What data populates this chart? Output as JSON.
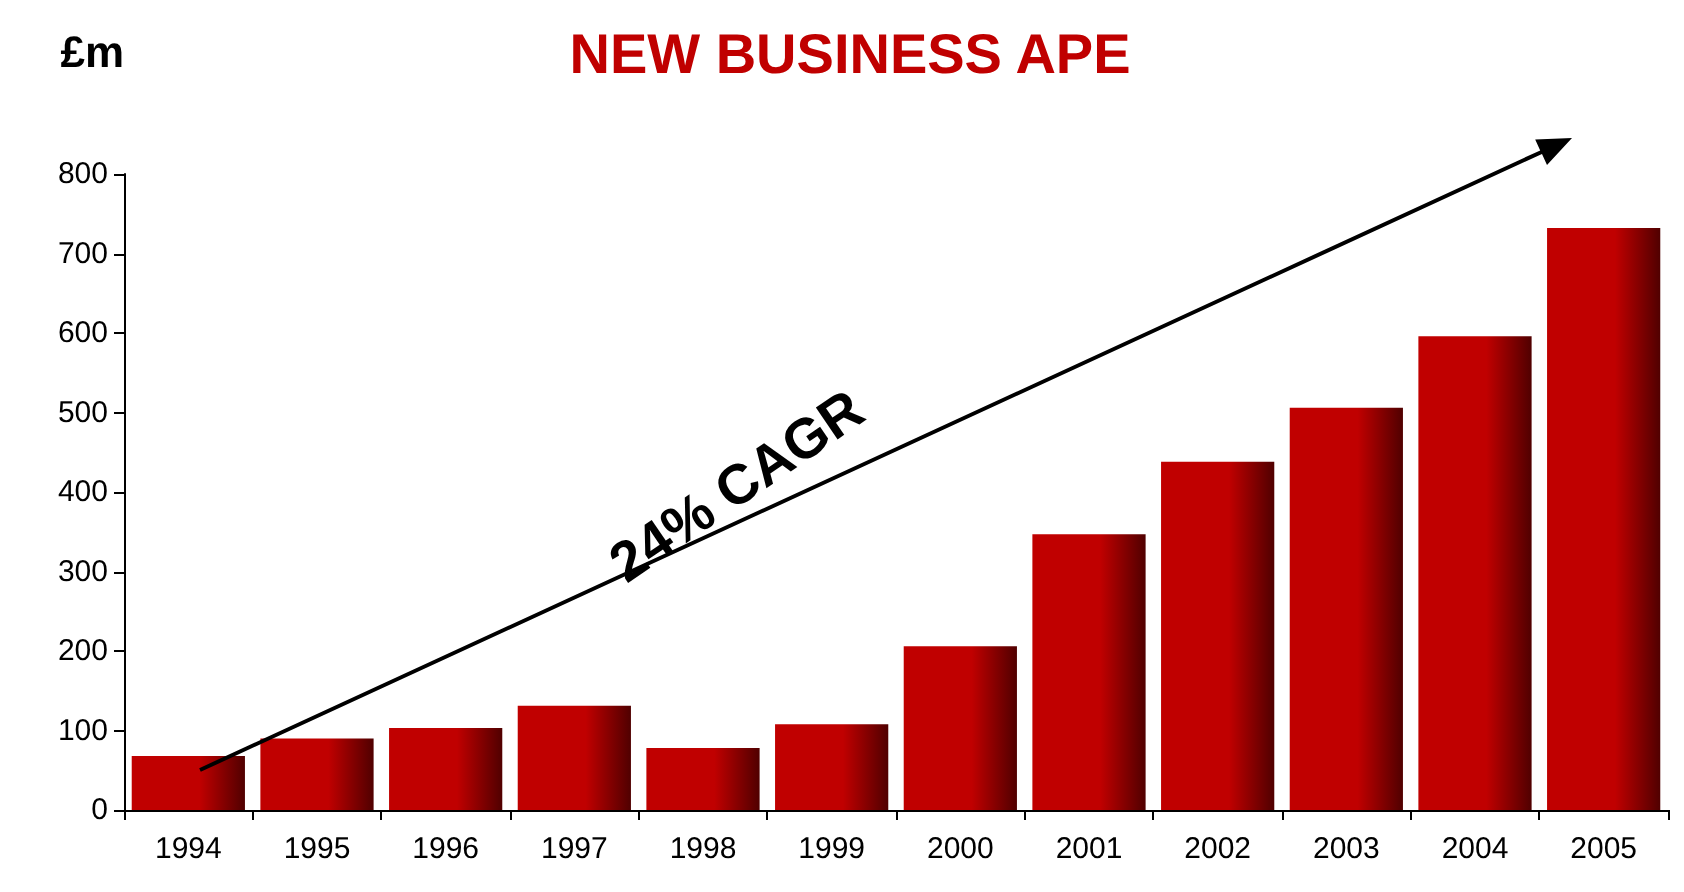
{
  "chart_data": {
    "type": "bar",
    "title": "NEW BUSINESS APE",
    "ylabel": "£m",
    "categories": [
      "1994",
      "1995",
      "1996",
      "1997",
      "1998",
      "1999",
      "2000",
      "2001",
      "2002",
      "2003",
      "2004",
      "2005"
    ],
    "values": [
      68,
      90,
      103,
      131,
      78,
      108,
      206,
      347,
      438,
      506,
      596,
      732
    ],
    "color": "#c00000",
    "ylim": [
      0,
      800
    ],
    "yticks": [
      0,
      100,
      200,
      300,
      400,
      500,
      600,
      700,
      800
    ],
    "grid": false,
    "annotations": [
      "24% CAGR"
    ]
  }
}
